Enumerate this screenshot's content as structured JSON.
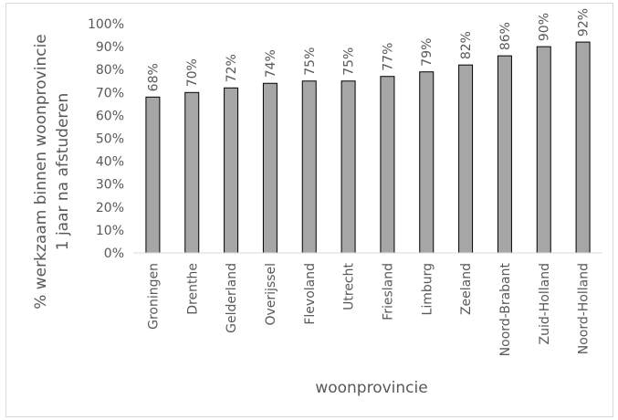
{
  "chart_data": {
    "type": "bar",
    "title": "",
    "xlabel": "woonprovincie",
    "ylabel_lines": [
      "% werkzaam binnen woonprovincie",
      "1 jaar na afstuderen"
    ],
    "categories": [
      "Groningen",
      "Drenthe",
      "Gelderland",
      "Overijssel",
      "Flevoland",
      "Utrecht",
      "Friesland",
      "Limburg",
      "Zeeland",
      "Noord-Brabant",
      "Zuid-Holland",
      "Noord-Holland"
    ],
    "values": [
      68,
      70,
      72,
      74,
      75,
      75,
      77,
      79,
      82,
      86,
      90,
      92
    ],
    "data_labels": [
      "68%",
      "70%",
      "72%",
      "74%",
      "75%",
      "75%",
      "77%",
      "79%",
      "82%",
      "86%",
      "90%",
      "92%"
    ],
    "ylim": [
      0,
      100
    ],
    "yticks": [
      0,
      10,
      20,
      30,
      40,
      50,
      60,
      70,
      80,
      90,
      100
    ],
    "ytick_labels": [
      "0%",
      "10%",
      "20%",
      "30%",
      "40%",
      "50%",
      "60%",
      "70%",
      "80%",
      "90%",
      "100%"
    ],
    "grid": false,
    "bar_color": "#a6a6a6",
    "bar_edge_color": "#000000"
  }
}
